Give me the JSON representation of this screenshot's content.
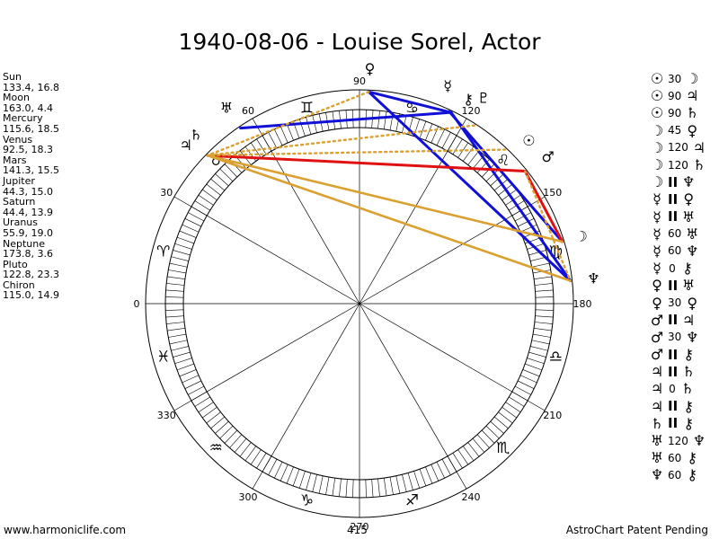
{
  "title": "1940-08-06 - Louise Sorel, Actor",
  "planets": [
    {
      "name": "Sun",
      "coords": "133.4, 16.8",
      "glyph": "☉",
      "lon": 133.4
    },
    {
      "name": "Moon",
      "coords": "163.0, 4.4",
      "glyph": "☽",
      "lon": 163.0
    },
    {
      "name": "Mercury",
      "coords": "115.6, 18.5",
      "glyph": "☿",
      "lon": 115.6
    },
    {
      "name": "Venus",
      "coords": "92.5, 18.3",
      "glyph": "♀",
      "lon": 92.5
    },
    {
      "name": "Mars",
      "coords": "141.3, 15.5",
      "glyph": "♂",
      "lon": 141.3
    },
    {
      "name": "Jupiter",
      "coords": "44.3, 15.0",
      "glyph": "♃",
      "lon": 44.3
    },
    {
      "name": "Saturn",
      "coords": "44.4, 13.9",
      "glyph": "♄",
      "lon": 44.4
    },
    {
      "name": "Uranus",
      "coords": "55.9, 19.0",
      "glyph": "♅",
      "lon": 55.9
    },
    {
      "name": "Neptune",
      "coords": "173.8, 3.6",
      "glyph": "♆",
      "lon": 173.8
    },
    {
      "name": "Pluto",
      "coords": "122.8, 23.3",
      "glyph": "♇",
      "lon": 122.8
    },
    {
      "name": "Chiron",
      "coords": "115.0, 14.9",
      "glyph": "⚷",
      "lon": 115.0
    }
  ],
  "aspects": [
    {
      "p1": "☉",
      "aspect": "30",
      "p2": "☽"
    },
    {
      "p1": "☉",
      "aspect": "90",
      "p2": "♃"
    },
    {
      "p1": "☉",
      "aspect": "90",
      "p2": "♄"
    },
    {
      "p1": "☽",
      "aspect": "45",
      "p2": "♀"
    },
    {
      "p1": "☽",
      "aspect": "120",
      "p2": "♃"
    },
    {
      "p1": "☽",
      "aspect": "120",
      "p2": "♄"
    },
    {
      "p1": "☽",
      "aspect": "II",
      "p2": "♆"
    },
    {
      "p1": "☿",
      "aspect": "II",
      "p2": "♀"
    },
    {
      "p1": "☿",
      "aspect": "II",
      "p2": "♅"
    },
    {
      "p1": "☿",
      "aspect": "60",
      "p2": "♅"
    },
    {
      "p1": "☿",
      "aspect": "60",
      "p2": "♆"
    },
    {
      "p1": "☿",
      "aspect": "0",
      "p2": "⚷"
    },
    {
      "p1": "♀",
      "aspect": "II",
      "p2": "♅"
    },
    {
      "p1": "♀",
      "aspect": "30",
      "p2": "♀"
    },
    {
      "p1": "♂",
      "aspect": "II",
      "p2": "♃"
    },
    {
      "p1": "♂",
      "aspect": "30",
      "p2": "♆"
    },
    {
      "p1": "♂",
      "aspect": "II",
      "p2": "⚷"
    },
    {
      "p1": "♃",
      "aspect": "II",
      "p2": "♄"
    },
    {
      "p1": "♃",
      "aspect": "0",
      "p2": "♄"
    },
    {
      "p1": "♃",
      "aspect": "II",
      "p2": "⚷"
    },
    {
      "p1": "♄",
      "aspect": "II",
      "p2": "⚷"
    },
    {
      "p1": "♅",
      "aspect": "120",
      "p2": "♆"
    },
    {
      "p1": "♅",
      "aspect": "60",
      "p2": "⚷"
    },
    {
      "p1": "♆",
      "aspect": "60",
      "p2": "⚷"
    }
  ],
  "degree_labels": [
    {
      "deg": 0,
      "text": "0"
    },
    {
      "deg": 30,
      "text": "30"
    },
    {
      "deg": 60,
      "text": "60"
    },
    {
      "deg": 90,
      "text": "90"
    },
    {
      "deg": 120,
      "text": "120"
    },
    {
      "deg": 150,
      "text": "150"
    },
    {
      "deg": 180,
      "text": "180"
    },
    {
      "deg": 210,
      "text": "210"
    },
    {
      "deg": 240,
      "text": "240"
    },
    {
      "deg": 270,
      "text": "270"
    },
    {
      "deg": 300,
      "text": "300"
    },
    {
      "deg": 330,
      "text": "330"
    }
  ],
  "signs": [
    {
      "glyph": "♈",
      "name": "aries",
      "mid": 15
    },
    {
      "glyph": "♉",
      "name": "taurus",
      "mid": 45
    },
    {
      "glyph": "♊",
      "name": "gemini",
      "mid": 75
    },
    {
      "glyph": "♋",
      "name": "cancer",
      "mid": 105
    },
    {
      "glyph": "♌",
      "name": "leo",
      "mid": 135
    },
    {
      "glyph": "♍",
      "name": "virgo",
      "mid": 165
    },
    {
      "glyph": "♎",
      "name": "libra",
      "mid": 195
    },
    {
      "glyph": "♏",
      "name": "scorpio",
      "mid": 225
    },
    {
      "glyph": "♐",
      "name": "sagittarius",
      "mid": 255
    },
    {
      "glyph": "♑",
      "name": "capricorn",
      "mid": 285
    },
    {
      "glyph": "♒",
      "name": "aquarius",
      "mid": 315
    },
    {
      "glyph": "♓",
      "name": "pisces",
      "mid": 345
    }
  ],
  "aspect_lines": [
    {
      "from": "Mercury",
      "to": "Venus",
      "kind": "blue"
    },
    {
      "from": "Venus",
      "to": "Neptune",
      "kind": "blue"
    },
    {
      "from": "Mercury",
      "to": "Uranus",
      "kind": "blue"
    },
    {
      "from": "Mercury",
      "to": "Neptune",
      "kind": "blue"
    },
    {
      "from": "Chiron",
      "to": "Moon",
      "kind": "blue"
    },
    {
      "from": "Mars",
      "to": "Moon",
      "kind": "red"
    },
    {
      "from": "Mars",
      "to": "Jupiter",
      "kind": "red"
    },
    {
      "from": "Moon",
      "to": "Jupiter",
      "kind": "gold"
    },
    {
      "from": "Neptune",
      "to": "Jupiter",
      "kind": "gold"
    },
    {
      "from": "Venus",
      "to": "Saturn",
      "kind": "gold-dotted"
    },
    {
      "from": "Pluto",
      "to": "Saturn",
      "kind": "gold-dotted"
    },
    {
      "from": "Sun",
      "to": "Saturn",
      "kind": "gold-dotted"
    },
    {
      "from": "Mars",
      "to": "Neptune",
      "kind": "gold-dotted"
    }
  ],
  "colors": {
    "blue": "#1010d8",
    "red": "#e01010",
    "gold": "#daa030"
  },
  "footer": {
    "left": "www.harmoniclife.com",
    "center": "415",
    "right": "AstroChart Patent Pending"
  }
}
